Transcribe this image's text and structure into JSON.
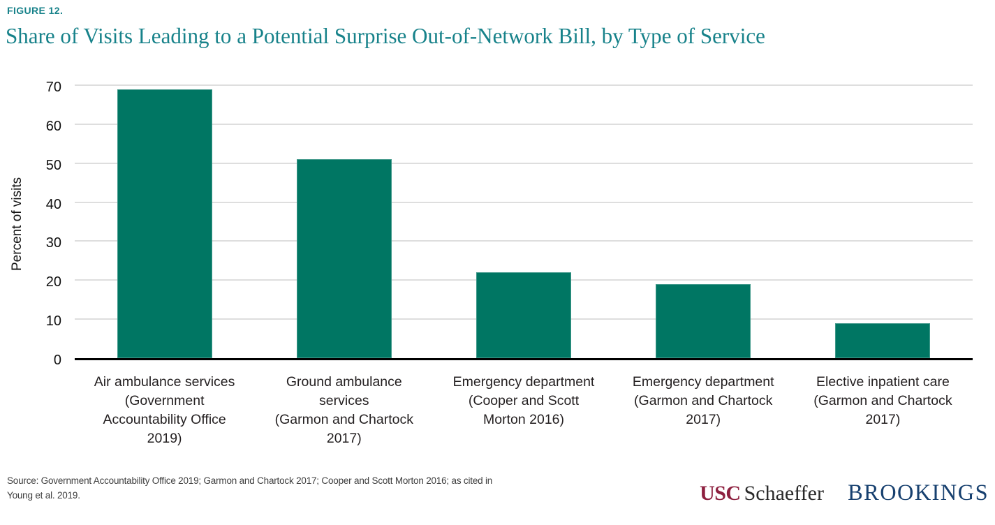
{
  "figure_label": "FIGURE 12.",
  "title": "Share of Visits Leading to a Potential Surprise Out-of-Network Bill, by Type of Service",
  "chart_data": {
    "type": "bar",
    "title": "Share of Visits Leading to a Potential Surprise Out-of-Network Bill, by Type of Service",
    "xlabel": "",
    "ylabel": "Percent of visits",
    "ylim": [
      0,
      70
    ],
    "yticks": [
      0,
      10,
      20,
      30,
      40,
      50,
      60,
      70
    ],
    "grid": "horizontal",
    "legend": "none",
    "bar_color": "#007663",
    "categories": [
      "Air ambulance services (Government Accountability Office 2019)",
      "Ground ambulance services (Garmon and Chartock 2017)",
      "Emergency department (Cooper and Scott Morton 2016)",
      "Emergency department (Garmon and Chartock 2017)",
      "Elective inpatient care (Garmon and Chartock 2017)"
    ],
    "category_lines": [
      [
        "Air ambulance services",
        "(Government",
        "Accountability Office",
        "2019)"
      ],
      [
        "Ground ambulance",
        "services",
        "(Garmon and Chartock",
        "2017)"
      ],
      [
        "Emergency department",
        "(Cooper and Scott",
        "Morton 2016)"
      ],
      [
        "Emergency department",
        "(Garmon and Chartock",
        "2017)"
      ],
      [
        "Elective inpatient care",
        "(Garmon and Chartock",
        "2017)"
      ]
    ],
    "values": [
      69,
      51,
      22,
      19,
      9
    ]
  },
  "source_note": {
    "lines": [
      "Source: Government Accountability Office 2019; Garmon and Chartock 2017; Cooper and Scott Morton 2016; as cited in",
      "Young et al. 2019."
    ]
  },
  "logos": {
    "usc": "USC",
    "schaeffer": "Schaeffer",
    "brookings": "BROOKINGS"
  },
  "colors": {
    "accent_teal": "#17828A",
    "bar": "#007663",
    "gridline": "#DEDEDE",
    "axis_line": "#000000",
    "usc_cardinal": "#8E2140",
    "brookings_blue": "#17406F",
    "label_text": "#231F20"
  }
}
